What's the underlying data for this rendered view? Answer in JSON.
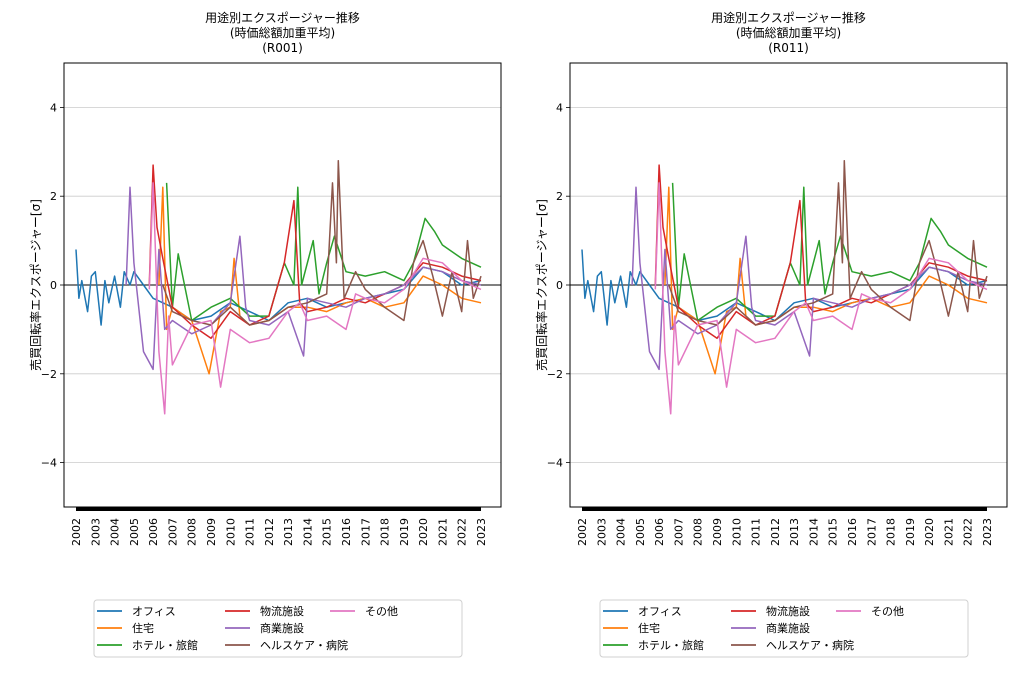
{
  "chart_data": {
    "type": "line",
    "ylabel": "売買回転率エクスポージャー[σ]",
    "ylim": [
      -5,
      5
    ],
    "yticks": [
      4,
      2,
      0,
      -2,
      -4
    ],
    "xlim": [
      2002,
      2023
    ],
    "xticks": [
      "2002",
      "2003",
      "2004",
      "2005",
      "2006",
      "2007",
      "2008",
      "2009",
      "2010",
      "2011",
      "2012",
      "2013",
      "2014",
      "2015",
      "2016",
      "2017",
      "2018",
      "2019",
      "2020",
      "2021",
      "2022",
      "2023"
    ],
    "grid": "horizontal",
    "legend_placement": "below",
    "panels": [
      {
        "title": [
          "用途別エクスポージャー推移",
          "(時価総額加重平均)",
          "(R001)"
        ]
      },
      {
        "title": [
          "用途別エクスポージャー推移",
          "(時価総額加重平均)",
          "(R011)"
        ]
      }
    ],
    "series": [
      {
        "name": "オフィス",
        "color": "#1f77b4",
        "x": [
          2002,
          2002.15,
          2002.3,
          2002.6,
          2002.8,
          2003,
          2003.3,
          2003.5,
          2003.7,
          2004,
          2004.3,
          2004.5,
          2004.8,
          2005,
          2005.5,
          2006,
          2007,
          2008,
          2009,
          2010,
          2011,
          2012,
          2013,
          2014,
          2015,
          2016,
          2017,
          2018,
          2019,
          2020,
          2021,
          2022,
          2023
        ],
        "y": [
          0.8,
          -0.3,
          0.1,
          -0.6,
          0.2,
          0.3,
          -0.9,
          0.1,
          -0.4,
          0.2,
          -0.5,
          0.3,
          0,
          0.3,
          0,
          -0.3,
          -0.5,
          -0.8,
          -0.7,
          -0.4,
          -0.6,
          -0.8,
          -0.4,
          -0.3,
          -0.5,
          -0.4,
          -0.3,
          -0.2,
          -0.1,
          0.4,
          0.3,
          0,
          0.1
        ]
      },
      {
        "name": "住宅",
        "color": "#ff7f0e",
        "x": [
          2006.3,
          2006.5,
          2006.7,
          2007,
          2008,
          2008.9,
          2009.5,
          2010,
          2010.2,
          2010.5,
          2011,
          2012,
          2013,
          2014,
          2015,
          2016,
          2017,
          2018,
          2019,
          2020,
          2021,
          2022,
          2023
        ],
        "y": [
          0,
          2.2,
          -1,
          -0.5,
          -0.8,
          -2,
          -0.6,
          -0.5,
          0.6,
          -0.7,
          -0.9,
          -0.8,
          -0.5,
          -0.5,
          -0.6,
          -0.4,
          -0.3,
          -0.5,
          -0.4,
          0.2,
          0,
          -0.3,
          -0.4
        ]
      },
      {
        "name": "ホテル・旅館",
        "color": "#2ca02c",
        "x": [
          2006.7,
          2007,
          2007.3,
          2008,
          2009,
          2010,
          2011,
          2012,
          2012.8,
          2013.3,
          2013.5,
          2013.7,
          2014.3,
          2014.6,
          2015,
          2015.4,
          2016,
          2017,
          2018,
          2019,
          2019.5,
          2020.1,
          2020.6,
          2021,
          2022,
          2023
        ],
        "y": [
          2.3,
          -0.5,
          0.7,
          -0.8,
          -0.5,
          -0.3,
          -0.7,
          -0.7,
          0.5,
          0,
          2.2,
          0,
          1.0,
          -0.2,
          0.5,
          1.1,
          0.3,
          0.2,
          0.3,
          0.1,
          0.5,
          1.5,
          1.2,
          0.9,
          0.6,
          0.4
        ]
      },
      {
        "name": "物流施設",
        "color": "#d62728",
        "x": [
          2005.8,
          2006,
          2006.2,
          2006.5,
          2007,
          2008,
          2009,
          2010,
          2011,
          2012,
          2012.8,
          2013.3,
          2013.6,
          2014,
          2015,
          2016,
          2017,
          2018,
          2019,
          2020,
          2021,
          2022,
          2023
        ],
        "y": [
          0,
          2.7,
          1.3,
          0.6,
          -0.5,
          -0.9,
          -1.2,
          -0.6,
          -0.9,
          -0.7,
          0.5,
          1.9,
          -0.4,
          -0.6,
          -0.5,
          -0.3,
          -0.4,
          -0.2,
          0,
          0.5,
          0.4,
          0.2,
          0.1
        ]
      },
      {
        "name": "商業施設",
        "color": "#9467bd",
        "x": [
          2004.6,
          2004.8,
          2005,
          2005.5,
          2006,
          2006.3,
          2006.6,
          2007,
          2008,
          2009,
          2010,
          2010.5,
          2010.8,
          2011,
          2012,
          2013,
          2013.8,
          2014,
          2015,
          2016,
          2017,
          2018,
          2019,
          2020,
          2021,
          2022,
          2023
        ],
        "y": [
          0,
          2.2,
          0.5,
          -1.5,
          -1.9,
          0.8,
          -1,
          -0.8,
          -1.1,
          -0.9,
          -0.4,
          1.1,
          -0.5,
          -0.8,
          -0.9,
          -0.6,
          -1.6,
          -0.3,
          -0.4,
          -0.5,
          -0.3,
          -0.2,
          0,
          0.4,
          0.3,
          0.1,
          0
        ]
      },
      {
        "name": "ヘルスケア・病院",
        "color": "#8c564b",
        "x": [
          2006.5,
          2007,
          2008,
          2009,
          2010,
          2011,
          2012,
          2013,
          2014,
          2015,
          2015.3,
          2015.5,
          2015.6,
          2015.9,
          2016.5,
          2017,
          2018,
          2019,
          2019.5,
          2020,
          2020.5,
          2021,
          2021.5,
          2022,
          2022.3,
          2022.6,
          2023
        ],
        "y": [
          0,
          -0.6,
          -0.8,
          -0.9,
          -0.5,
          -0.9,
          -0.8,
          -0.5,
          -0.4,
          -0.2,
          2.3,
          0.5,
          2.8,
          -0.3,
          0.3,
          -0.1,
          -0.5,
          -0.8,
          0.5,
          1.0,
          0.2,
          -0.7,
          0.3,
          -0.6,
          1.0,
          -0.3,
          0.2
        ]
      },
      {
        "name": "その他",
        "color": "#e377c2",
        "x": [
          2005.8,
          2006,
          2006.3,
          2006.6,
          2006.8,
          2007,
          2008,
          2009,
          2009.5,
          2010,
          2011,
          2012,
          2013,
          2013.6,
          2014,
          2015,
          2016,
          2016.5,
          2017,
          2018,
          2019,
          2020,
          2021,
          2022,
          2023
        ],
        "y": [
          -0.1,
          2.3,
          -1.5,
          -2.9,
          -0.7,
          -1.8,
          -0.9,
          -0.8,
          -2.3,
          -1.0,
          -1.3,
          -1.2,
          -0.6,
          -0.4,
          -0.8,
          -0.7,
          -1.0,
          -0.2,
          -0.3,
          -0.4,
          -0.1,
          0.6,
          0.5,
          0.1,
          -0.1
        ]
      }
    ]
  }
}
